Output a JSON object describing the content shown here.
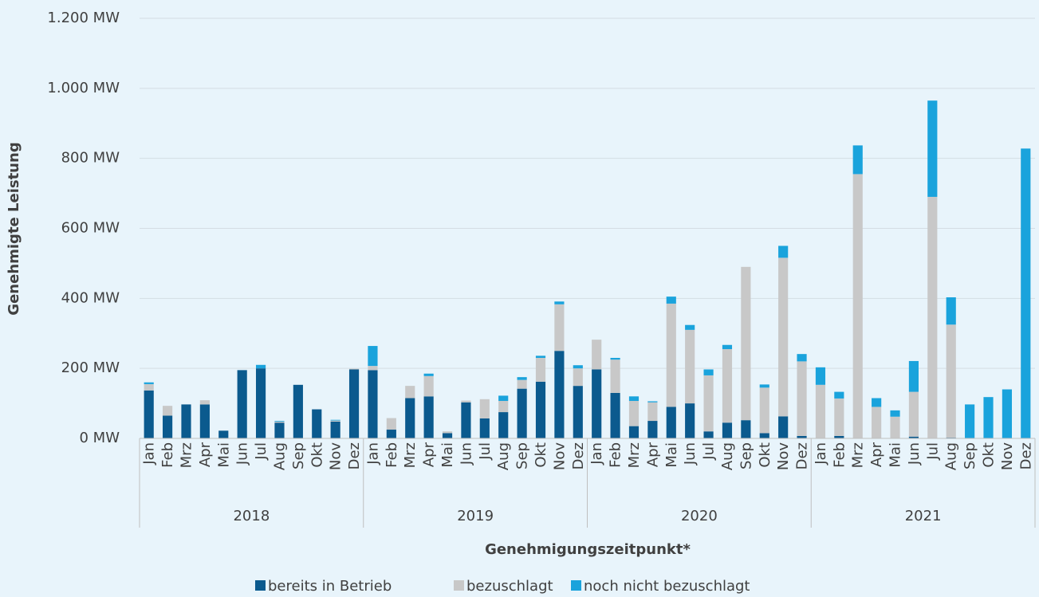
{
  "chart_data": {
    "type": "stacked_bar",
    "y_label": "Genehmigte Leistung",
    "x_label": "Genehmigungszeitpunkt*",
    "categories": [
      "Jan",
      "Feb",
      "Mrz",
      "Apr",
      "Mai",
      "Jun",
      "Jul",
      "Aug",
      "Sep",
      "Okt",
      "Nov",
      "Dez",
      "Jan",
      "Feb",
      "Mrz",
      "Apr",
      "Mai",
      "Jun",
      "Jul",
      "Aug",
      "Sep",
      "Okt",
      "Nov",
      "Dez",
      "Jan",
      "Feb",
      "Mrz",
      "Apr",
      "Mai",
      "Jun",
      "Jul",
      "Aug",
      "Sep",
      "Okt",
      "Nov",
      "Dez",
      "Jan",
      "Feb",
      "Mrz",
      "Apr",
      "Mai",
      "Jun",
      "Jul",
      "Aug",
      "Sep",
      "Okt",
      "Nov",
      "Dez"
    ],
    "years": [
      "2018",
      "2019",
      "2020",
      "2021"
    ],
    "series": [
      {
        "name": "bereits in Betrieb",
        "color": "#0b5a8e",
        "values": [
          137,
          65,
          97,
          97,
          22,
          195,
          200,
          45,
          153,
          83,
          48,
          197,
          195,
          25,
          115,
          120,
          15,
          103,
          57,
          75,
          142,
          162,
          250,
          150,
          197,
          130,
          35,
          50,
          90,
          100,
          20,
          45,
          52,
          15,
          63,
          7,
          0,
          7,
          0,
          0,
          0,
          5,
          0,
          2,
          0,
          0,
          0,
          0
        ]
      },
      {
        "name": "bezuschlagt",
        "color": "#c8c8c8",
        "values": [
          18,
          28,
          0,
          12,
          0,
          0,
          0,
          3,
          0,
          0,
          3,
          2,
          12,
          33,
          35,
          58,
          5,
          5,
          55,
          32,
          25,
          68,
          133,
          50,
          85,
          95,
          72,
          53,
          295,
          210,
          160,
          210,
          438,
          130,
          453,
          213,
          153,
          107,
          755,
          90,
          62,
          128,
          690,
          323,
          0,
          0,
          0,
          0
        ]
      },
      {
        "name": "noch nicht bezuschlagt",
        "color": "#1aa3dc",
        "values": [
          5,
          0,
          0,
          0,
          0,
          0,
          10,
          2,
          0,
          0,
          2,
          0,
          57,
          0,
          0,
          7,
          0,
          0,
          0,
          15,
          8,
          6,
          8,
          9,
          0,
          5,
          13,
          3,
          20,
          14,
          17,
          12,
          0,
          9,
          34,
          21,
          50,
          19,
          82,
          25,
          18,
          88,
          275,
          78,
          97,
          118,
          140,
          828
        ]
      }
    ],
    "ylim": [
      0,
      1200
    ],
    "yticks": [
      {
        "value": 0,
        "label": "0 MW"
      },
      {
        "value": 200,
        "label": "200 MW"
      },
      {
        "value": 400,
        "label": "400 MW"
      },
      {
        "value": 600,
        "label": "600 MW"
      },
      {
        "value": 800,
        "label": "800 MW"
      },
      {
        "value": 1000,
        "label": "1.000 MW"
      },
      {
        "value": 1200,
        "label": "1.200 MW"
      }
    ],
    "grid": true,
    "legend": "bottom"
  }
}
